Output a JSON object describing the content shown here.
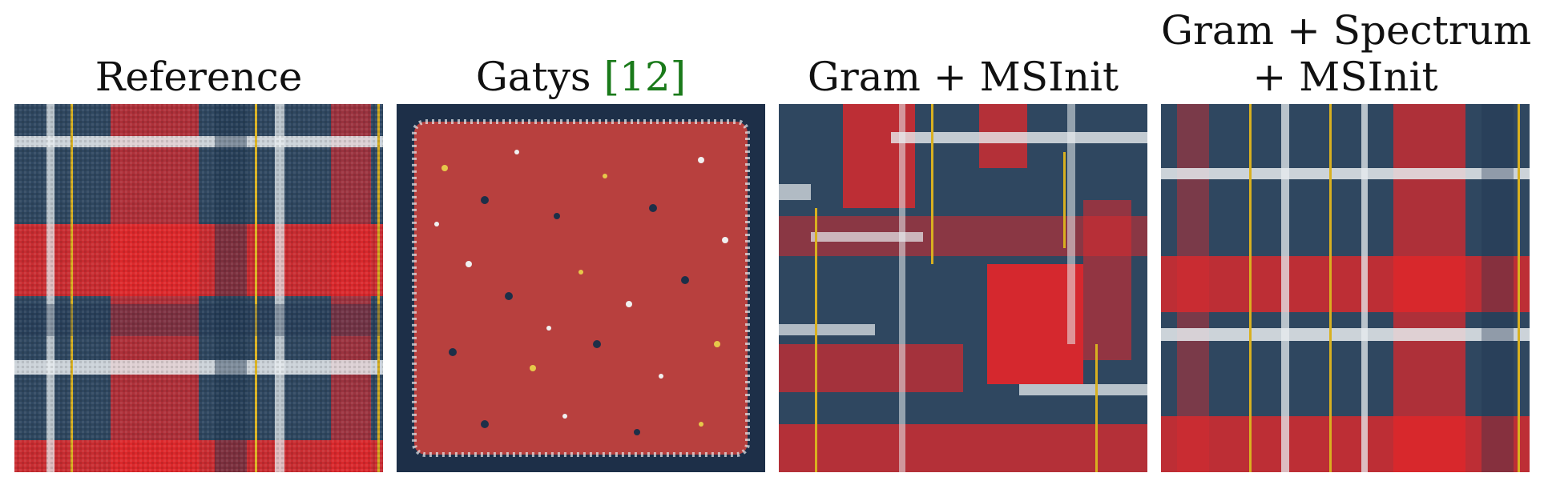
{
  "panels": [
    {
      "title": "Reference",
      "title_line2": ""
    },
    {
      "title": "Gatys ",
      "cite_open": "[",
      "cite": "12",
      "cite_close": "]"
    },
    {
      "title": "Gram + MSInit",
      "title_line2": ""
    },
    {
      "title": "Gram + Spectrum",
      "title_line2": "+ MSInit"
    }
  ],
  "colors": {
    "navy": "#2f4760",
    "red": "#e4262a",
    "white_stripe": "#e8ecef",
    "yellow_stripe": "#d8b020",
    "muddy_red": "#b8403e",
    "cite_green": "#1a7a1a"
  }
}
